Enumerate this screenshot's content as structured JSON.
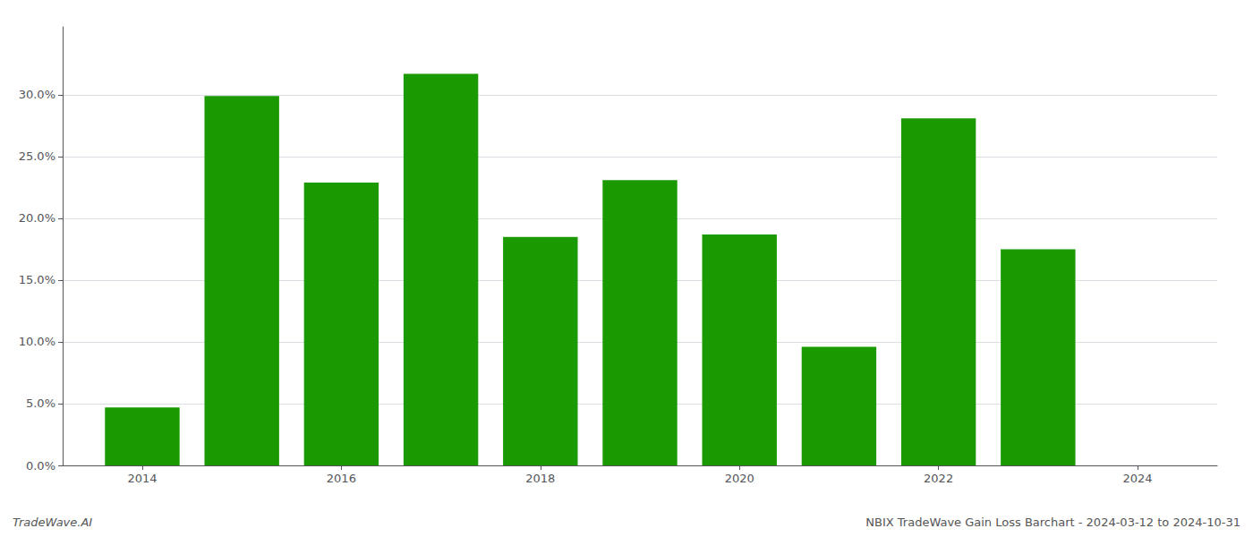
{
  "chart_data": {
    "type": "bar",
    "x": [
      2014,
      2015,
      2016,
      2017,
      2018,
      2019,
      2020,
      2021,
      2022,
      2023
    ],
    "values": [
      0.047,
      0.299,
      0.229,
      0.317,
      0.185,
      0.231,
      0.187,
      0.096,
      0.281,
      0.175
    ],
    "color": "#1a9a00",
    "xlim": [
      2013.2,
      2024.8
    ],
    "xticks": [
      2014,
      2016,
      2018,
      2020,
      2022,
      2024
    ],
    "ylim": [
      0.0,
      0.355
    ],
    "yticks": [
      {
        "value": 0.0,
        "label": "0.0%"
      },
      {
        "value": 0.05,
        "label": "5.0%"
      },
      {
        "value": 0.1,
        "label": "10.0%"
      },
      {
        "value": 0.15,
        "label": "15.0%"
      },
      {
        "value": 0.2,
        "label": "20.0%"
      },
      {
        "value": 0.25,
        "label": "25.0%"
      },
      {
        "value": 0.3,
        "label": "30.0%"
      }
    ],
    "grid": true,
    "annotations": [
      "TradeWave.AI",
      "NBIX TradeWave Gain Loss Barchart - 2024-03-12 to 2024-10-31"
    ]
  }
}
